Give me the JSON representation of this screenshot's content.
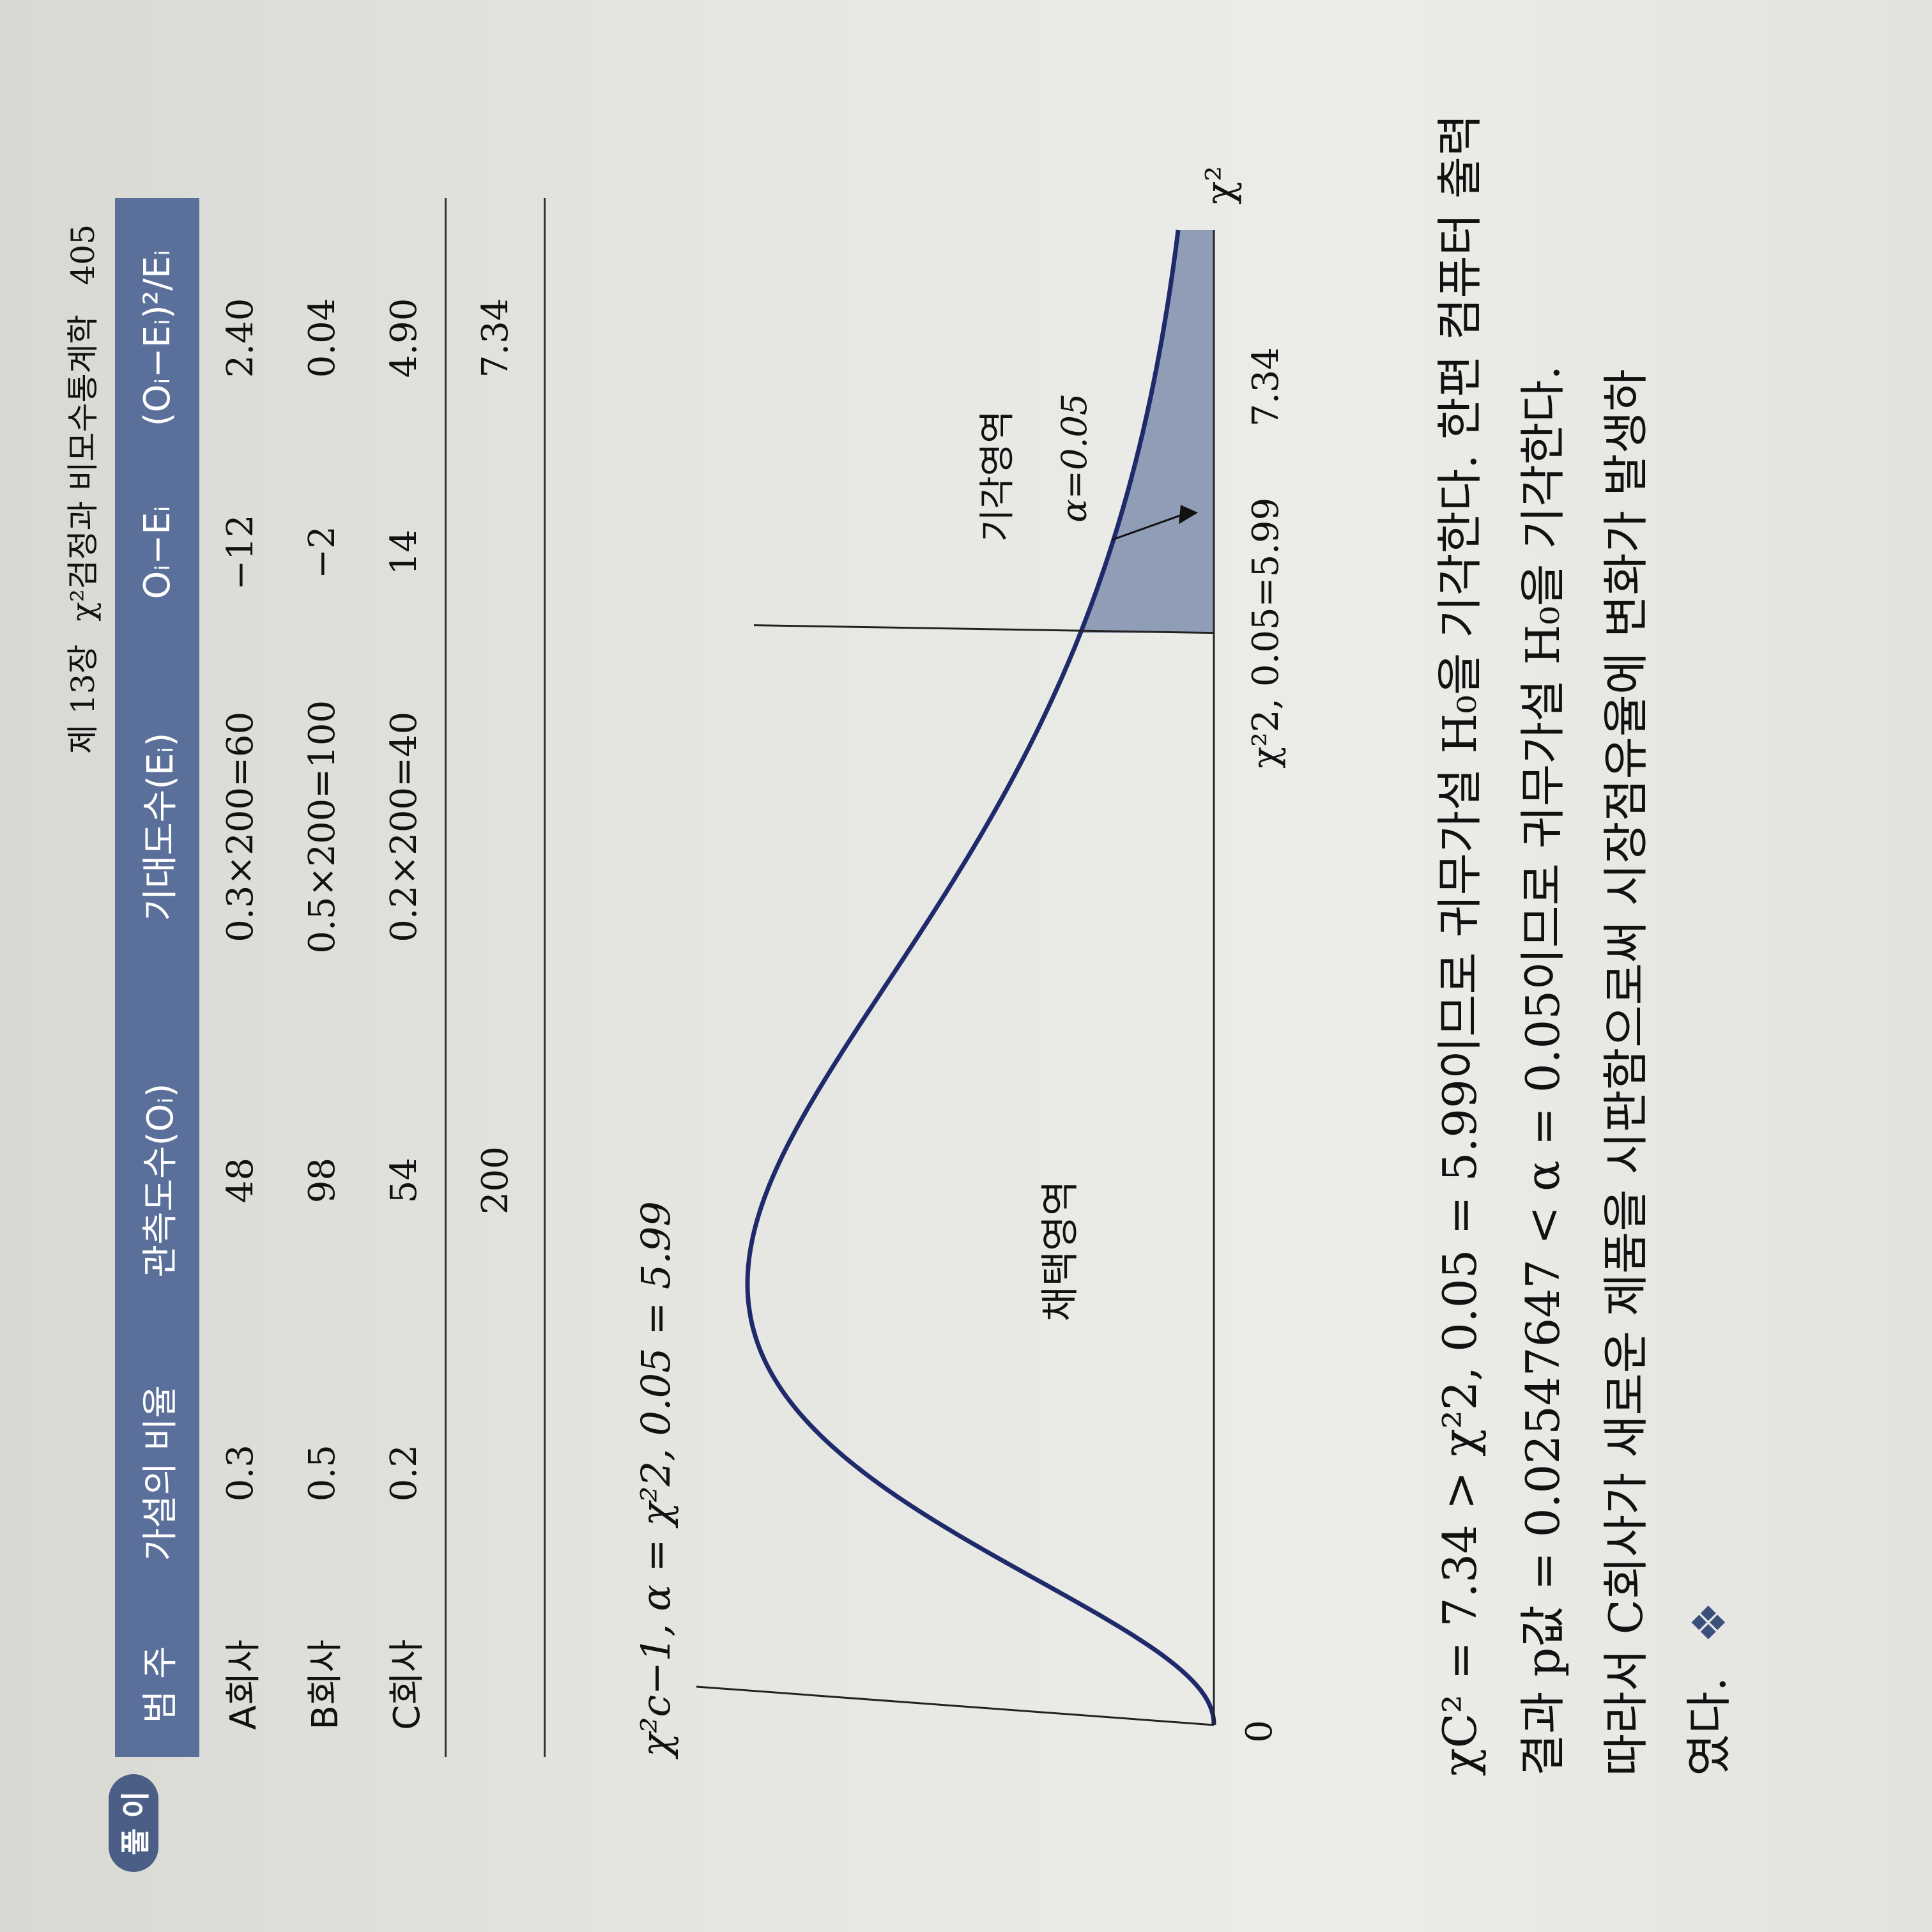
{
  "header": {
    "chapter": "제 13장",
    "title": "χ²검정과 비모수통계학",
    "page_number": "405"
  },
  "solution_badge": "풀 이",
  "table": {
    "columns": [
      "범 주",
      "가설의 비율",
      "관측도수(Oᵢ)",
      "기대도수(Eᵢ)",
      "Oᵢ−Eᵢ",
      "(Oᵢ−Eᵢ)²/Eᵢ"
    ],
    "rows": [
      {
        "category": "A회사",
        "ratio": "0.3",
        "observed": "48",
        "expected": "0.3×200=60",
        "diff": "−12",
        "chi": "2.40"
      },
      {
        "category": "B회사",
        "ratio": "0.5",
        "observed": "98",
        "expected": "0.5×200=100",
        "diff": "−2",
        "chi": "0.04"
      },
      {
        "category": "C회사",
        "ratio": "0.2",
        "observed": "54",
        "expected": "0.2×200=40",
        "diff": "14",
        "chi": "4.90"
      }
    ],
    "total": {
      "observed": "200",
      "chi": "7.34"
    }
  },
  "critical_value": "χ²c−1, α = χ²2, 0.05 = 5.99",
  "chart_data": {
    "type": "area",
    "distribution": "chi-square",
    "df": 2,
    "curve_color": "#1f2a6b",
    "shade_color": "#7f8fae",
    "xlabel": "χ²",
    "origin_label": "0",
    "critical_label": "χ²2, 0.05=5.99",
    "critical_x": 5.99,
    "statistic_label": "7.34",
    "statistic_x": 7.34,
    "accept_label": "채택영역",
    "reject_label": "기각영역",
    "alpha_label": "α=0.05"
  },
  "conclusion": {
    "line1": "χC² = 7.34 > χ²2, 0.05 = 5.99이므로 귀무가설 H₀을 기각한다. 한편 컴퓨터 출력",
    "line2": "결과 p값 = 0.02547647 < α = 0.05이므로 귀무가설 H₀을 기각한다.",
    "line3": "따라서 C회사가 새로운 제품을 시판함으로써 시장점유율에 변화가 발생하",
    "line4": "였다.",
    "end_mark": "❖"
  }
}
